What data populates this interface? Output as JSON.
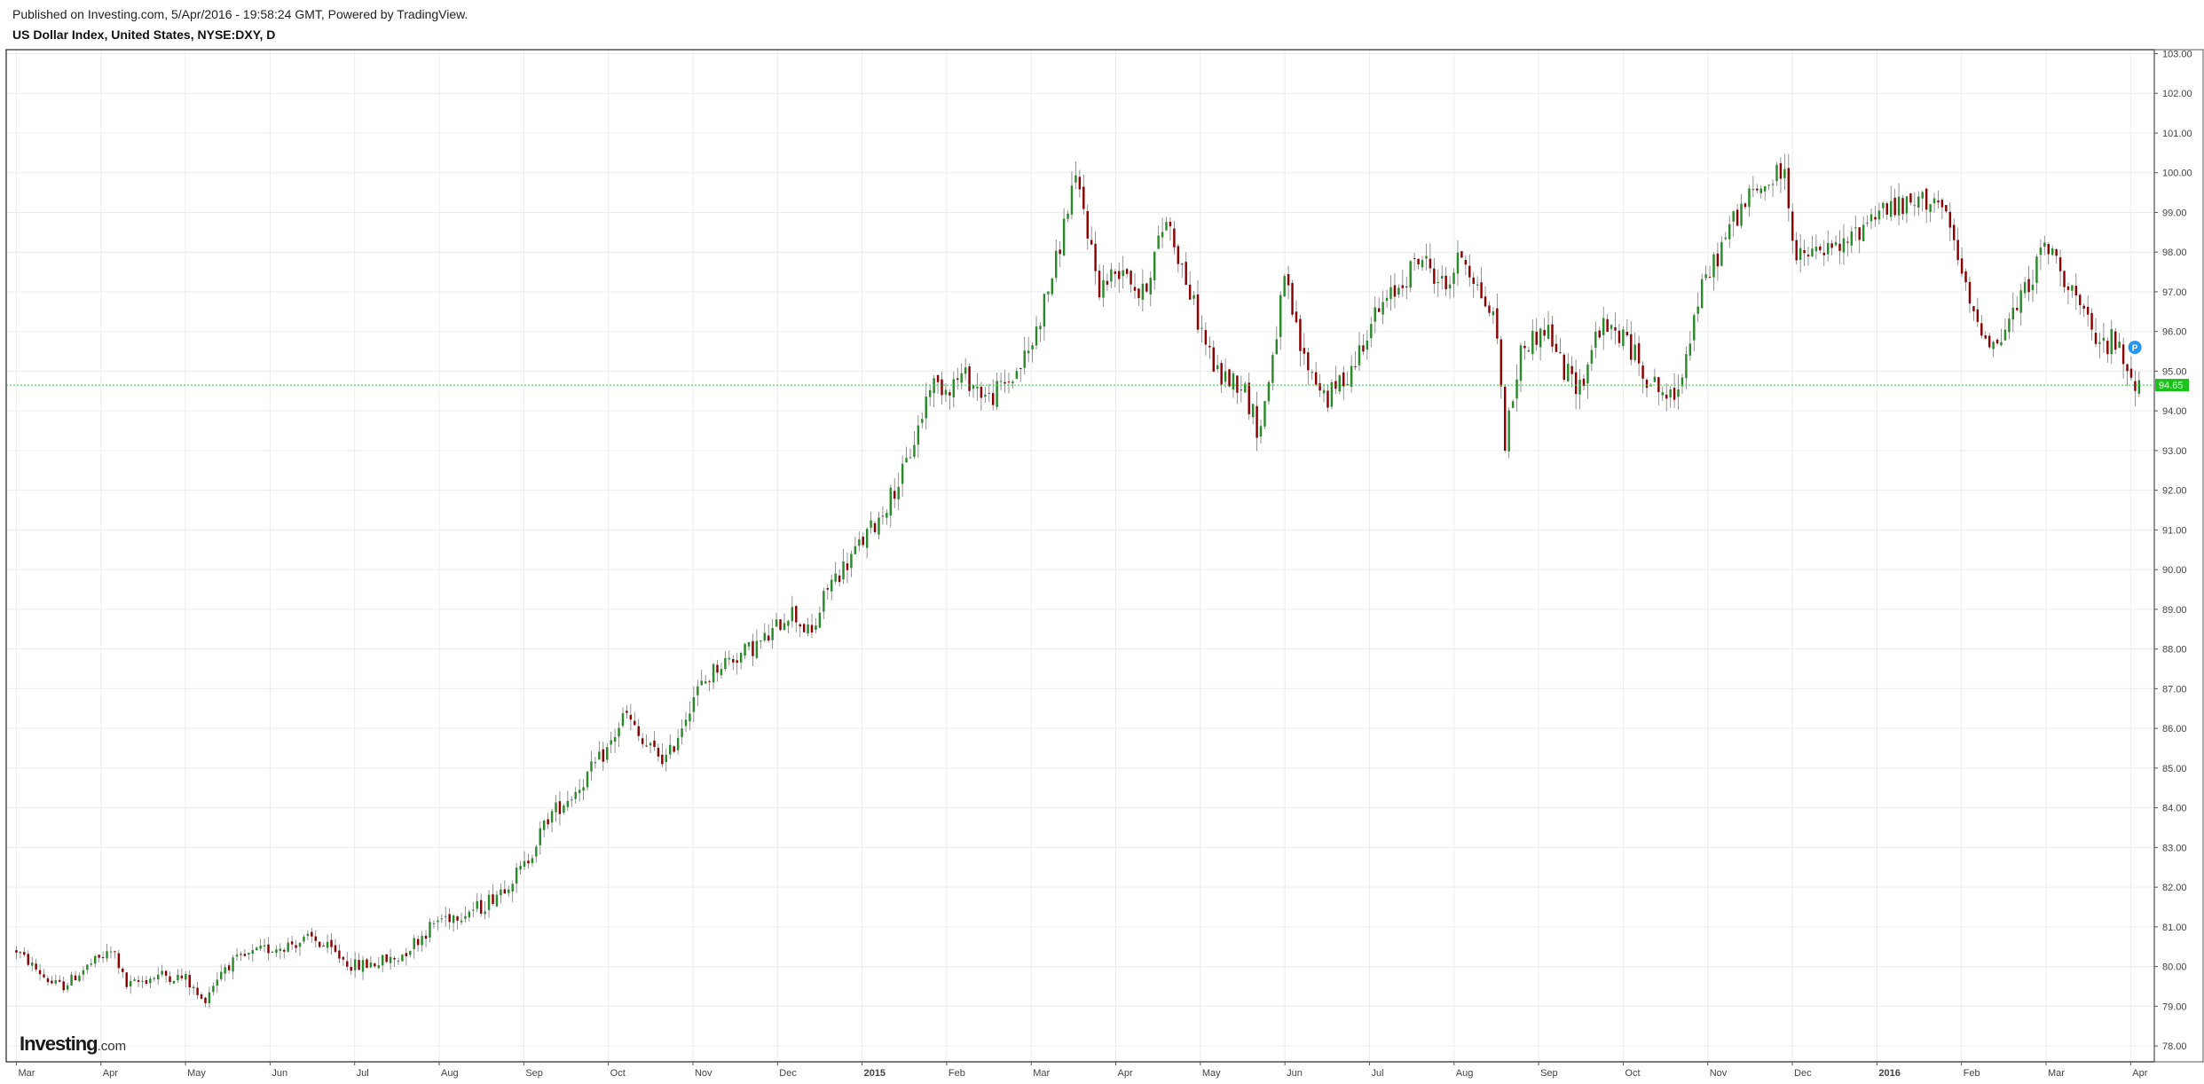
{
  "header": {
    "published": "Published on Investing.com, 5/Apr/2016 - 19:58:24 GMT, Powered by TradingView.",
    "title": "US Dollar Index, United States, NYSE:DXY, D"
  },
  "logo": {
    "brand": "Investing",
    "suffix": ".com"
  },
  "colors": {
    "up": "#2a8a2a",
    "down": "#8b0000",
    "grid": "#ececec",
    "last_price_line": "#2ecc40",
    "last_price_badge": "#19c119",
    "marker": "#2196f3"
  },
  "icons": {
    "marker": "p-marker-icon"
  },
  "chart_data": {
    "type": "candlestick",
    "title": "US Dollar Index, United States, NYSE:DXY, D",
    "xlabel": "",
    "ylabel": "",
    "ylim": [
      77.6,
      103.1
    ],
    "y_ticks": [
      "78.00",
      "79.00",
      "80.00",
      "81.00",
      "82.00",
      "83.00",
      "84.00",
      "85.00",
      "86.00",
      "87.00",
      "88.00",
      "89.00",
      "90.00",
      "91.00",
      "92.00",
      "93.00",
      "94.00",
      "95.00",
      "96.00",
      "97.00",
      "98.00",
      "99.00",
      "100.00",
      "101.00",
      "102.00",
      "103.00"
    ],
    "x_ticks": [
      {
        "label": "Mar",
        "month": 0,
        "bold": false
      },
      {
        "label": "Apr",
        "month": 1,
        "bold": false
      },
      {
        "label": "May",
        "month": 2,
        "bold": false
      },
      {
        "label": "Jun",
        "month": 3,
        "bold": false
      },
      {
        "label": "Jul",
        "month": 4,
        "bold": false
      },
      {
        "label": "Aug",
        "month": 5,
        "bold": false
      },
      {
        "label": "Sep",
        "month": 6,
        "bold": false
      },
      {
        "label": "Oct",
        "month": 7,
        "bold": false
      },
      {
        "label": "Nov",
        "month": 8,
        "bold": false
      },
      {
        "label": "Dec",
        "month": 9,
        "bold": false
      },
      {
        "label": "2015",
        "month": 10,
        "bold": true
      },
      {
        "label": "Feb",
        "month": 11,
        "bold": false
      },
      {
        "label": "Mar",
        "month": 12,
        "bold": false
      },
      {
        "label": "Apr",
        "month": 13,
        "bold": false
      },
      {
        "label": "May",
        "month": 14,
        "bold": false
      },
      {
        "label": "Jun",
        "month": 15,
        "bold": false
      },
      {
        "label": "Jul",
        "month": 16,
        "bold": false
      },
      {
        "label": "Aug",
        "month": 17,
        "bold": false
      },
      {
        "label": "Sep",
        "month": 18,
        "bold": false
      },
      {
        "label": "Oct",
        "month": 19,
        "bold": false
      },
      {
        "label": "Nov",
        "month": 20,
        "bold": false
      },
      {
        "label": "Dec",
        "month": 21,
        "bold": false
      },
      {
        "label": "2016",
        "month": 22,
        "bold": true
      },
      {
        "label": "Feb",
        "month": 23,
        "bold": false
      },
      {
        "label": "Mar",
        "month": 24,
        "bold": false
      },
      {
        "label": "Apr",
        "month": 25,
        "bold": false
      }
    ],
    "x_range_months": [
      -0.12,
      25.28
    ],
    "last_price": 94.65,
    "last_price_label": "94.65",
    "marker": {
      "month": 25.05,
      "price": 95.6,
      "label": "P"
    },
    "anchors": [
      [
        0.0,
        80.4
      ],
      [
        0.4,
        79.6
      ],
      [
        0.55,
        79.5
      ],
      [
        0.9,
        80.1
      ],
      [
        1.15,
        80.4
      ],
      [
        1.3,
        79.5
      ],
      [
        1.7,
        79.8
      ],
      [
        2.0,
        79.7
      ],
      [
        2.2,
        79.1
      ],
      [
        2.45,
        80.0
      ],
      [
        2.9,
        80.4
      ],
      [
        3.3,
        80.6
      ],
      [
        3.5,
        80.7
      ],
      [
        4.0,
        80.0
      ],
      [
        4.5,
        80.2
      ],
      [
        5.0,
        81.2
      ],
      [
        5.5,
        81.5
      ],
      [
        6.0,
        82.5
      ],
      [
        6.3,
        83.8
      ],
      [
        6.6,
        84.4
      ],
      [
        7.0,
        85.5
      ],
      [
        7.2,
        86.4
      ],
      [
        7.4,
        85.6
      ],
      [
        7.7,
        85.2
      ],
      [
        8.0,
        86.8
      ],
      [
        8.3,
        87.6
      ],
      [
        8.6,
        87.9
      ],
      [
        8.9,
        88.3
      ],
      [
        9.15,
        89.0
      ],
      [
        9.4,
        88.3
      ],
      [
        9.6,
        89.6
      ],
      [
        9.8,
        90.1
      ],
      [
        10.2,
        91.3
      ],
      [
        10.5,
        92.5
      ],
      [
        10.7,
        93.8
      ],
      [
        10.8,
        94.7
      ],
      [
        11.0,
        94.6
      ],
      [
        11.2,
        94.9
      ],
      [
        11.5,
        94.3
      ],
      [
        11.8,
        94.9
      ],
      [
        12.0,
        95.6
      ],
      [
        12.3,
        97.8
      ],
      [
        12.5,
        99.8
      ],
      [
        12.6,
        99.3
      ],
      [
        12.8,
        97.1
      ],
      [
        13.1,
        97.7
      ],
      [
        13.3,
        96.8
      ],
      [
        13.6,
        98.9
      ],
      [
        13.8,
        97.5
      ],
      [
        14.0,
        96.1
      ],
      [
        14.2,
        94.9
      ],
      [
        14.5,
        94.7
      ],
      [
        14.7,
        93.4
      ],
      [
        15.0,
        97.3
      ],
      [
        15.2,
        95.4
      ],
      [
        15.5,
        94.3
      ],
      [
        15.8,
        95.1
      ],
      [
        16.0,
        96.2
      ],
      [
        16.3,
        97.0
      ],
      [
        16.6,
        97.9
      ],
      [
        16.9,
        97.1
      ],
      [
        17.1,
        98.0
      ],
      [
        17.3,
        97.0
      ],
      [
        17.5,
        96.2
      ],
      [
        17.6,
        93.2
      ],
      [
        17.8,
        95.6
      ],
      [
        18.1,
        96.1
      ],
      [
        18.3,
        95.0
      ],
      [
        18.5,
        94.6
      ],
      [
        18.7,
        96.1
      ],
      [
        19.0,
        95.9
      ],
      [
        19.3,
        94.8
      ],
      [
        19.6,
        94.2
      ],
      [
        19.9,
        96.9
      ],
      [
        20.3,
        98.8
      ],
      [
        20.5,
        99.4
      ],
      [
        20.7,
        99.7
      ],
      [
        20.9,
        100.1
      ],
      [
        21.05,
        97.8
      ],
      [
        21.3,
        98.0
      ],
      [
        21.6,
        98.1
      ],
      [
        22.0,
        99.1
      ],
      [
        22.3,
        99.1
      ],
      [
        22.7,
        99.4
      ],
      [
        22.9,
        98.3
      ],
      [
        23.1,
        96.6
      ],
      [
        23.4,
        95.6
      ],
      [
        23.7,
        96.8
      ],
      [
        24.0,
        98.2
      ],
      [
        24.3,
        97.1
      ],
      [
        24.6,
        95.6
      ],
      [
        24.8,
        95.8
      ],
      [
        25.0,
        94.9
      ],
      [
        25.1,
        94.65
      ]
    ],
    "bars_count": 540
  }
}
